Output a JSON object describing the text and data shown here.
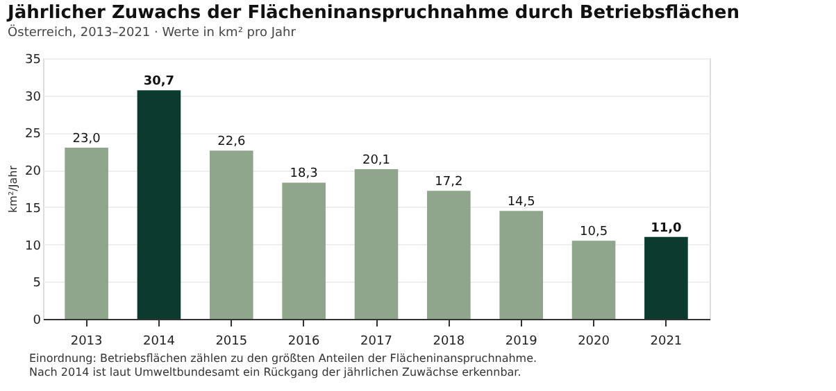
{
  "chart_data": {
    "type": "bar",
    "title": "Jährlicher Zuwachs der Flächeninanspruchnahme durch Betriebsflächen",
    "subtitle": "Österreich, 2013–2021 · Werte in km² pro Jahr",
    "ylabel": "km²/Jahr",
    "categories": [
      "2013",
      "2014",
      "2015",
      "2016",
      "2017",
      "2018",
      "2019",
      "2020",
      "2021"
    ],
    "values": [
      23.0,
      30.7,
      22.6,
      18.3,
      20.1,
      17.2,
      14.5,
      10.5,
      11.0
    ],
    "colors": [
      "#8fa68c",
      "#0b3b2e",
      "#8fa68c",
      "#8fa68c",
      "#8fa68c",
      "#8fa68c",
      "#8fa68c",
      "#8fa68c",
      "#0b3b2e"
    ],
    "value_labels": [
      "23,0",
      "30,7",
      "22,6",
      "18,3",
      "20,1",
      "17,2",
      "14,5",
      "10,5",
      "11,0"
    ],
    "ylim": [
      0,
      35
    ],
    "yticks": [
      0,
      5,
      10,
      15,
      20,
      25,
      30,
      35
    ],
    "grid": "y",
    "annotations": [
      "Einordnung: Betriebsflächen zählen zu den größten Anteilen der Flächeninanspruchnahme.",
      "Nach 2014 ist laut Umweltbundesamt ein Rückgang der jährlichen Zuwächse erkennbar."
    ]
  }
}
